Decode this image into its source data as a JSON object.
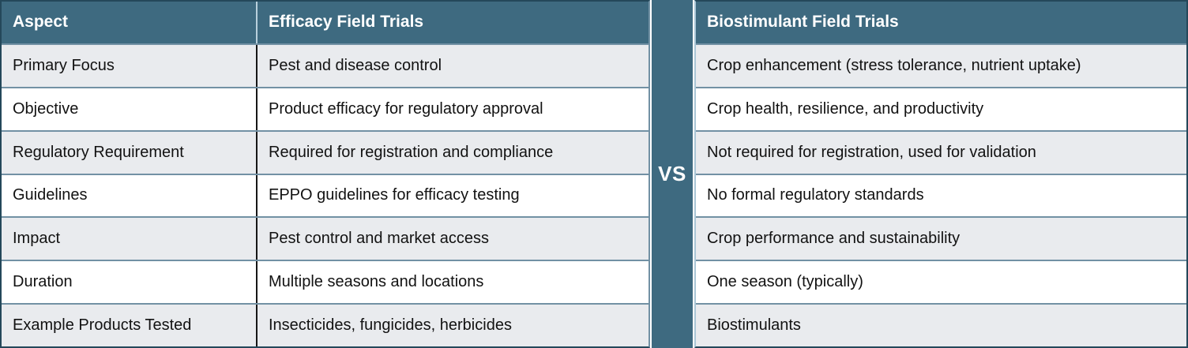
{
  "palette": {
    "header_teal": "#3E6A80",
    "dark_border": "#24485A",
    "row_divider": "#7291A4",
    "light_divider": "#A9C6D6",
    "gray_row": "#E9EBEE",
    "white_row": "#FFFFFF",
    "header_text": "#FFFFFF",
    "body_text": "#121212"
  },
  "left_table": {
    "headers": [
      "Aspect",
      "Efficacy Field Trials"
    ],
    "rows": [
      {
        "aspect": "Primary Focus",
        "value": "Pest and disease control"
      },
      {
        "aspect": "Objective",
        "value": "Product efficacy for regulatory approval"
      },
      {
        "aspect": "Regulatory Requirement",
        "value": "Required for registration and compliance"
      },
      {
        "aspect": "Guidelines",
        "value": "EPPO guidelines for efficacy testing"
      },
      {
        "aspect": "Impact",
        "value": "Pest control and market access"
      },
      {
        "aspect": "Duration",
        "value": "Multiple seasons and locations"
      },
      {
        "aspect": "Example Products Tested",
        "value": "Insecticides, fungicides, herbicides"
      }
    ]
  },
  "divider": {
    "label": "VS"
  },
  "right_table": {
    "header": "Biostimulant Field Trials",
    "rows": [
      "Crop enhancement (stress tolerance, nutrient uptake)",
      "Crop health, resilience, and productivity",
      "Not required for registration, used for validation",
      "No formal regulatory standards",
      "Crop performance and sustainability",
      "One season (typically)",
      "Biostimulants"
    ]
  }
}
